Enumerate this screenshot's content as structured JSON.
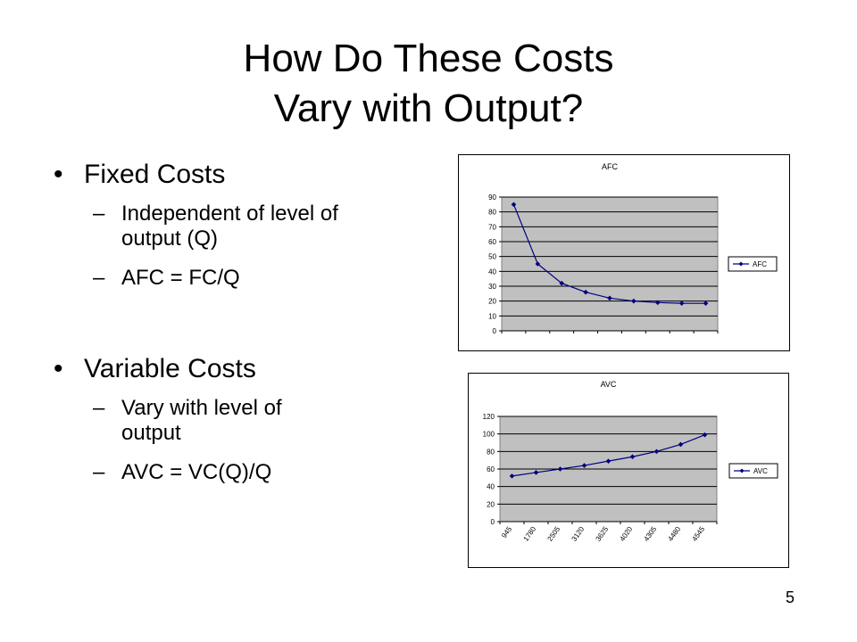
{
  "slide": {
    "title_line1": "How Do These Costs",
    "title_line2": "Vary with Output?",
    "bullets": [
      {
        "label": "Fixed Costs",
        "subitems": [
          "Independent of level of",
          "output (Q)",
          "AFC = FC/Q"
        ]
      },
      {
        "label": "Variable Costs",
        "subitems": [
          "Vary with level of",
          "output",
          "AVC = VC(Q)/Q"
        ]
      }
    ],
    "page_number": "5"
  },
  "chart_data": [
    {
      "type": "line",
      "title": "AFC",
      "categories": [
        "",
        "",
        "",
        "",
        "",
        "",
        "",
        "",
        ""
      ],
      "series": [
        {
          "name": "AFC",
          "values": [
            85,
            45,
            32,
            26,
            22,
            20,
            19,
            18.5,
            18.5
          ]
        }
      ],
      "ylim": [
        0,
        90
      ],
      "yticks": [
        0,
        10,
        20,
        30,
        40,
        50,
        60,
        70,
        80,
        90
      ],
      "grid": "horizontal",
      "plot_background": "#C0C0C0",
      "line_color": "#000080",
      "legend": "right"
    },
    {
      "type": "line",
      "title": "AVC",
      "categories": [
        "945",
        "1780",
        "2505",
        "3120",
        "3625",
        "4020",
        "4305",
        "4480",
        "4545"
      ],
      "series": [
        {
          "name": "AVC",
          "values": [
            52,
            56,
            60,
            64,
            69,
            74,
            80,
            88,
            99
          ]
        }
      ],
      "ylim": [
        0,
        120
      ],
      "yticks": [
        0,
        20,
        40,
        60,
        80,
        100,
        120
      ],
      "grid": "horizontal",
      "plot_background": "#C0C0C0",
      "line_color": "#000080",
      "legend": "right"
    }
  ]
}
